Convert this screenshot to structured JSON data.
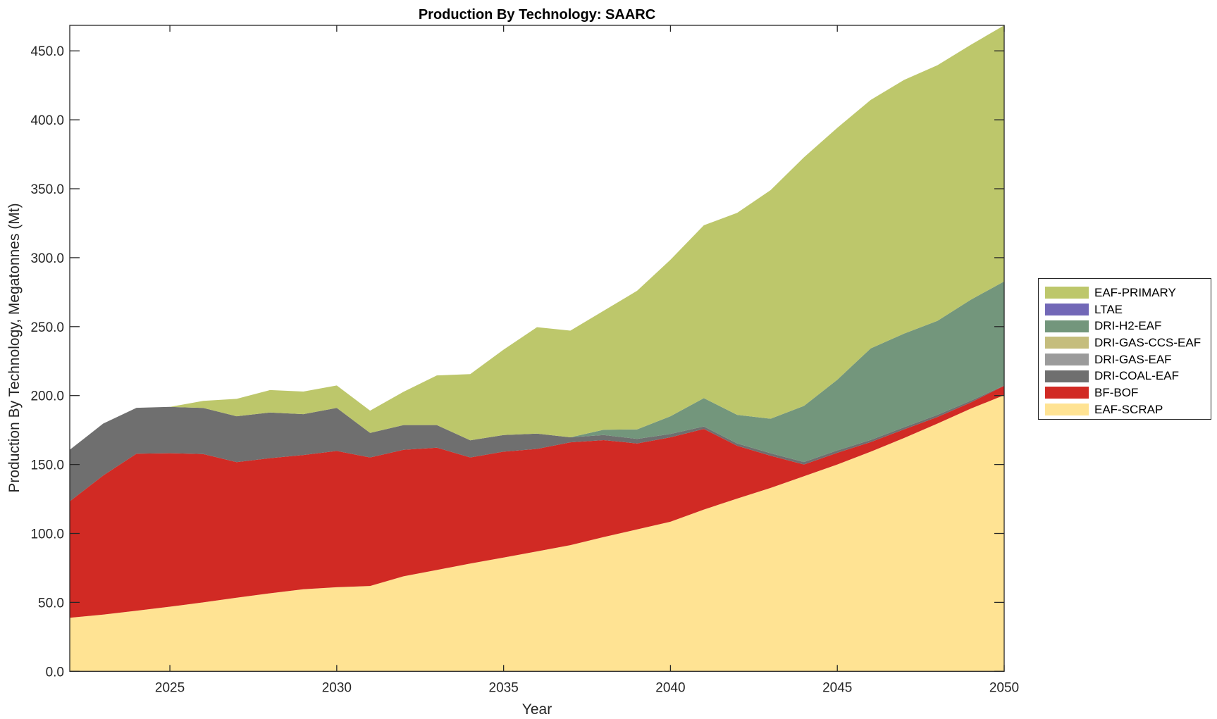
{
  "chart_data": {
    "type": "area",
    "stacked": true,
    "title": "Production By Technology: SAARC",
    "xlabel": "Year",
    "ylabel": "Production By Technology, Megatonnes (Mt)",
    "xlim": [
      2022,
      2050
    ],
    "ylim": [
      0,
      468.5
    ],
    "x_ticks": [
      2025,
      2030,
      2035,
      2040,
      2045,
      2050
    ],
    "x_tick_labels": [
      "2025",
      "2030",
      "2035",
      "2040",
      "2045",
      "2050"
    ],
    "y_ticks": [
      0,
      50,
      100,
      150,
      200,
      250,
      300,
      350,
      400,
      450
    ],
    "y_tick_labels": [
      "0.0",
      "50.0",
      "100.0",
      "150.0",
      "200.0",
      "250.0",
      "300.0",
      "350.0",
      "400.0",
      "450.0"
    ],
    "grid": false,
    "legend_position": "right",
    "x": [
      2022,
      2023,
      2024,
      2025,
      2026,
      2027,
      2028,
      2029,
      2030,
      2031,
      2032,
      2033,
      2034,
      2035,
      2036,
      2037,
      2038,
      2039,
      2040,
      2041,
      2042,
      2043,
      2044,
      2045,
      2046,
      2047,
      2048,
      2049,
      2050
    ],
    "series": [
      {
        "name": "EAF-SCRAP",
        "color": "#FFE393",
        "values": [
          38.8,
          41.1,
          43.9,
          46.9,
          50.0,
          53.4,
          56.6,
          59.5,
          61.0,
          61.9,
          68.9,
          73.5,
          78.2,
          82.5,
          87.0,
          91.5,
          97.4,
          102.9,
          108.5,
          117.3,
          125.3,
          133.0,
          141.5,
          150.0,
          159.3,
          169.2,
          179.7,
          190.5,
          200.3
        ]
      },
      {
        "name": "BF-BOF",
        "color": "#D12A24",
        "values": [
          84.5,
          100.9,
          113.9,
          111.3,
          107.6,
          98.3,
          98.0,
          97.4,
          98.8,
          93.2,
          91.8,
          88.7,
          76.9,
          76.8,
          74.3,
          74.6,
          70.3,
          62.4,
          61.2,
          58.5,
          38.3,
          23.4,
          8.5,
          8.5,
          7.0,
          6.3,
          4.8,
          4.5,
          6.8
        ]
      },
      {
        "name": "DRI-COAL-EAF",
        "color": "#6F6F6F",
        "values": [
          37.4,
          37.7,
          33.3,
          33.6,
          33.4,
          33.3,
          33.1,
          29.6,
          31.2,
          17.8,
          17.9,
          16.4,
          12.4,
          12.1,
          11.1,
          3.6,
          3.7,
          3.3,
          2.4,
          1.8,
          1.7,
          1.8,
          1.8,
          1.7,
          1.5,
          1.5,
          1.5,
          1.3,
          0.2
        ]
      },
      {
        "name": "DRI-GAS-EAF",
        "color": "#9B9B9B",
        "values": [
          0,
          0,
          0,
          0,
          0,
          0,
          0,
          0,
          0,
          0,
          0,
          0,
          0,
          0,
          0,
          0,
          0,
          0,
          0,
          0,
          0,
          0,
          0,
          0,
          0,
          0,
          0,
          0,
          0
        ]
      },
      {
        "name": "DRI-GAS-CCS-EAF",
        "color": "#C5BD7D",
        "values": [
          0,
          0,
          0,
          0,
          0,
          0,
          0,
          0,
          0,
          0,
          0,
          0,
          0,
          0,
          0,
          0,
          0,
          0,
          0,
          0,
          0,
          0,
          0,
          0,
          0,
          0,
          0,
          0,
          0
        ]
      },
      {
        "name": "DRI-H2-EAF",
        "color": "#73967C",
        "values": [
          0,
          0,
          0,
          0,
          0,
          0,
          0,
          0,
          0,
          0,
          0,
          0,
          0,
          0,
          0,
          0,
          3.8,
          6.9,
          12.9,
          20.5,
          20.7,
          25.0,
          40.7,
          51.3,
          66.4,
          67.9,
          68.2,
          73.2,
          75.5
        ]
      },
      {
        "name": "LTAE",
        "color": "#7268B7",
        "values": [
          0,
          0,
          0,
          0,
          0,
          0,
          0,
          0,
          0,
          0,
          0,
          0,
          0,
          0,
          0,
          0,
          0,
          0,
          0,
          0,
          0,
          0,
          0,
          0,
          0,
          0,
          0,
          0,
          0
        ]
      },
      {
        "name": "EAF-PRIMARY",
        "color": "#BDC76B",
        "values": [
          0,
          0,
          0,
          0,
          5.2,
          12.6,
          16.3,
          16.4,
          16.3,
          16.2,
          24.1,
          36.0,
          48.1,
          61.9,
          77.2,
          77.4,
          86.3,
          100.5,
          113.5,
          125.4,
          146.5,
          165.8,
          180.3,
          182.7,
          180.2,
          184.0,
          185.4,
          184.9,
          185.7
        ]
      }
    ],
    "legend_order": [
      "EAF-PRIMARY",
      "LTAE",
      "DRI-H2-EAF",
      "DRI-GAS-CCS-EAF",
      "DRI-GAS-EAF",
      "DRI-COAL-EAF",
      "BF-BOF",
      "EAF-SCRAP"
    ]
  },
  "legend": {
    "items": [
      {
        "label": "EAF-PRIMARY",
        "color": "#BDC76B"
      },
      {
        "label": "LTAE",
        "color": "#7268B7"
      },
      {
        "label": "DRI-H2-EAF",
        "color": "#73967C"
      },
      {
        "label": "DRI-GAS-CCS-EAF",
        "color": "#C5BD7D"
      },
      {
        "label": "DRI-GAS-EAF",
        "color": "#9B9B9B"
      },
      {
        "label": "DRI-COAL-EAF",
        "color": "#6F6F6F"
      },
      {
        "label": "BF-BOF",
        "color": "#D12A24"
      },
      {
        "label": "EAF-SCRAP",
        "color": "#FFE393"
      }
    ]
  }
}
